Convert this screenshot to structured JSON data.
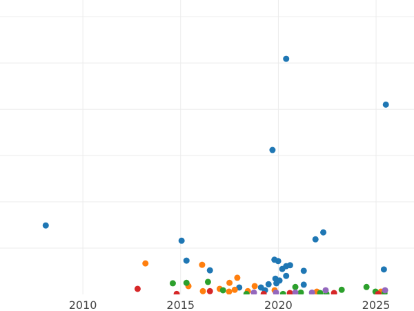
{
  "chart_data": {
    "type": "scatter",
    "title": "",
    "xlabel": "",
    "ylabel": "",
    "xlim": [
      2005.76,
      2026.94
    ],
    "ylim": [
      0,
      6.36
    ],
    "x_ticks": [
      2010,
      2015,
      2020,
      2025
    ],
    "y_grid": [
      1,
      2,
      3,
      4,
      5,
      6
    ],
    "grid": true,
    "y_tick_labels_visible": false,
    "colors": {
      "blue": "#1f77b4",
      "orange": "#ff7f0e",
      "green": "#2ca02c",
      "red": "#d62728",
      "purple": "#9467bd"
    },
    "series": [
      {
        "color": "blue",
        "points": [
          [
            2008.1,
            1.49
          ],
          [
            2020.4,
            5.09
          ],
          [
            2025.5,
            4.1
          ],
          [
            2019.7,
            3.12
          ],
          [
            2015.05,
            1.16
          ],
          [
            2015.3,
            0.73
          ],
          [
            2016.5,
            0.52
          ],
          [
            2021.9,
            1.19
          ],
          [
            2022.3,
            1.34
          ],
          [
            2019.8,
            0.75
          ],
          [
            2019.99,
            0.72
          ],
          [
            2020.2,
            0.55
          ],
          [
            2020.4,
            0.61
          ],
          [
            2020.6,
            0.63
          ],
          [
            2021.3,
            0.51
          ],
          [
            2020.4,
            0.4
          ],
          [
            2019.85,
            0.34
          ],
          [
            2020.06,
            0.3
          ],
          [
            2019.9,
            0.24
          ],
          [
            2019.5,
            0.22
          ],
          [
            2021.3,
            0.21
          ],
          [
            2025.4,
            0.54
          ],
          [
            2018.0,
            0.15
          ],
          [
            2019.11,
            0.15
          ],
          [
            2019.32,
            0.09
          ]
        ]
      },
      {
        "color": "orange",
        "points": [
          [
            2013.2,
            0.67
          ],
          [
            2016.1,
            0.64
          ],
          [
            2017.9,
            0.36
          ],
          [
            2017.5,
            0.25
          ],
          [
            2015.4,
            0.18
          ],
          [
            2017.0,
            0.12
          ],
          [
            2016.14,
            0.07
          ],
          [
            2017.48,
            0.06
          ],
          [
            2017.77,
            0.1
          ],
          [
            2018.44,
            0.07
          ],
          [
            2018.79,
            0.18
          ],
          [
            2019.81,
            0.09
          ],
          [
            2021.97,
            0.06
          ],
          [
            2025.25,
            0.06
          ]
        ]
      },
      {
        "color": "green",
        "points": [
          [
            2014.6,
            0.24
          ],
          [
            2015.3,
            0.25
          ],
          [
            2016.4,
            0.27
          ],
          [
            2017.17,
            0.09
          ],
          [
            2020.87,
            0.16
          ],
          [
            2023.24,
            0.1
          ],
          [
            2024.51,
            0.16
          ],
          [
            2024.97,
            0.06
          ],
          [
            2018.37,
            0.01
          ],
          [
            2021.15,
            0.04
          ],
          [
            2022.14,
            0.03
          ],
          [
            2022.46,
            0.01
          ],
          [
            2020.24,
            0.01
          ],
          [
            2025.43,
            0.03
          ]
        ]
      },
      {
        "color": "red",
        "points": [
          [
            2012.8,
            0.12
          ],
          [
            2014.8,
            0.01
          ],
          [
            2016.5,
            0.07
          ],
          [
            2019.25,
            0.01
          ],
          [
            2020.59,
            0.03
          ],
          [
            2022.85,
            0.03
          ],
          [
            2025.11,
            0.01
          ]
        ]
      },
      {
        "color": "purple",
        "points": [
          [
            2018.75,
            0.04
          ],
          [
            2019.88,
            0.04
          ],
          [
            2020.87,
            0.04
          ],
          [
            2021.72,
            0.04
          ],
          [
            2022.42,
            0.09
          ],
          [
            2025.46,
            0.09
          ]
        ]
      }
    ]
  }
}
